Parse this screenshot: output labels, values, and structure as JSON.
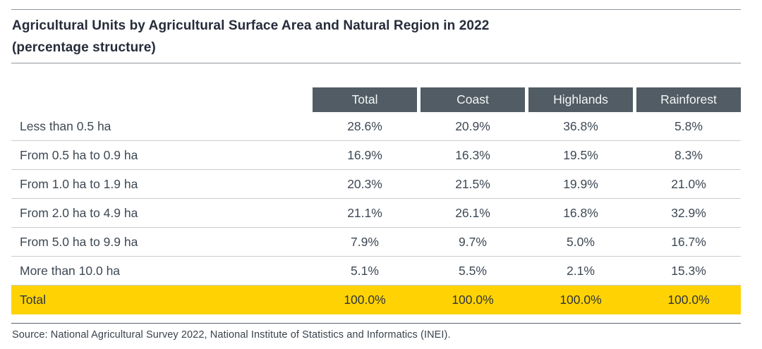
{
  "header": {
    "title_line1": "Agricultural Units by Agricultural Surface Area and Natural Region in 2022",
    "title_line2": "(percentage structure)"
  },
  "chart_data": {
    "type": "table",
    "title": "Agricultural Units by Agricultural Surface Area and Natural Region in 2022 (percentage structure)",
    "units": "percent",
    "columns": [
      "Total",
      "Coast",
      "Highlands",
      "Rainforest"
    ],
    "rows": [
      {
        "label": "Less than 0.5 ha",
        "values": [
          "28.6%",
          "20.9%",
          "36.8%",
          "5.8%"
        ]
      },
      {
        "label": "From 0.5 ha to 0.9 ha",
        "values": [
          "16.9%",
          "16.3%",
          "19.5%",
          "8.3%"
        ]
      },
      {
        "label": "From 1.0 ha to 1.9 ha",
        "values": [
          "20.3%",
          "21.5%",
          "19.9%",
          "21.0%"
        ]
      },
      {
        "label": "From 2.0 ha to 4.9 ha",
        "values": [
          "21.1%",
          "26.1%",
          "16.8%",
          "32.9%"
        ]
      },
      {
        "label": "From 5.0 ha to 9.9 ha",
        "values": [
          "7.9%",
          "9.7%",
          "5.0%",
          "16.7%"
        ]
      },
      {
        "label": "More than 10.0 ha",
        "values": [
          "5.1%",
          "5.5%",
          "2.1%",
          "15.3%"
        ]
      }
    ],
    "total": {
      "label": "Total",
      "values": [
        "100.0%",
        "100.0%",
        "100.0%",
        "100.0%"
      ]
    },
    "values_numeric": {
      "Total": [
        28.6,
        16.9,
        20.3,
        21.1,
        7.9,
        5.1,
        100.0
      ],
      "Coast": [
        20.9,
        16.3,
        21.5,
        26.1,
        9.7,
        5.5,
        100.0
      ],
      "Highlands": [
        36.8,
        19.5,
        19.9,
        16.8,
        5.0,
        2.1,
        100.0
      ],
      "Rainforest": [
        5.8,
        8.3,
        21.0,
        32.9,
        16.7,
        15.3,
        100.0
      ]
    }
  },
  "footer": {
    "source": "Source: National Agricultural Survey 2022, National Institute of Statistics and Informatics (INEI)."
  },
  "colors": {
    "header_bg": "#515c64",
    "header_text": "#f4f6f7",
    "total_row_bg": "#ffd303",
    "title_text": "#262c3a",
    "body_text": "#3e4854",
    "row_divider": "#c9cdd1",
    "section_rule": "#8f969c"
  }
}
